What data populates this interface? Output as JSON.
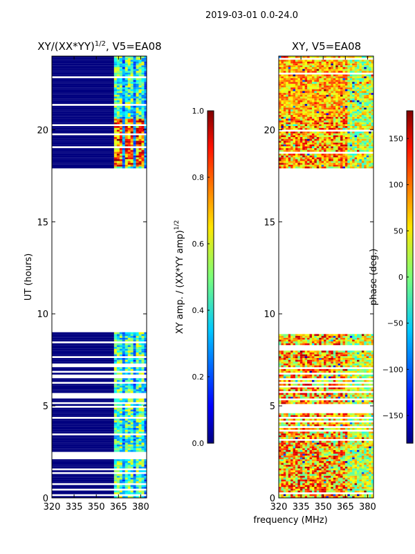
{
  "figure": {
    "suptitle": "2019-03-01 0.0-24.0",
    "xlabel": "frequency (MHz)"
  },
  "chart_data": [
    {
      "type": "heatmap",
      "title_main": "XY/(XX*YY)",
      "title_sup": "1/2",
      "title_tail": ", V5=EA08",
      "ylabel": "UT (hours)",
      "xlim": [
        320,
        384
      ],
      "ylim": [
        0,
        24
      ],
      "xticks": [
        320,
        335,
        350,
        365,
        380
      ],
      "yticks": [
        0,
        5,
        10,
        15,
        20
      ],
      "colorbar": {
        "label_main": "XY amp. / (XX*YY amp)",
        "label_sup": "1/2",
        "range": [
          0.0,
          1.0
        ],
        "ticks": [
          "0.0",
          "0.2",
          "0.4",
          "0.6",
          "0.8",
          "1.0"
        ],
        "colormap": "jet"
      },
      "data_blocks_ut": [
        [
          0,
          9.0
        ],
        [
          17.9,
          24
        ]
      ],
      "description_values": {
        "low_band_amplitude": 0.0,
        "high_band_amplitude_range": [
          0.3,
          0.9
        ]
      }
    },
    {
      "type": "heatmap",
      "title": "XY, V5=EA08",
      "xlim": [
        320,
        384
      ],
      "ylim": [
        0,
        24
      ],
      "xticks": [
        320,
        335,
        350,
        365,
        380
      ],
      "yticks": [
        0,
        5,
        10,
        15,
        20
      ],
      "colorbar": {
        "label": "phase (deg.)",
        "range": [
          -180,
          180
        ],
        "ticks": [
          "-150",
          "-100",
          "-50",
          "0",
          "50",
          "100",
          "150"
        ],
        "colormap": "jet"
      },
      "data_blocks_ut": [
        [
          0,
          9.0
        ],
        [
          17.9,
          24
        ]
      ]
    }
  ]
}
